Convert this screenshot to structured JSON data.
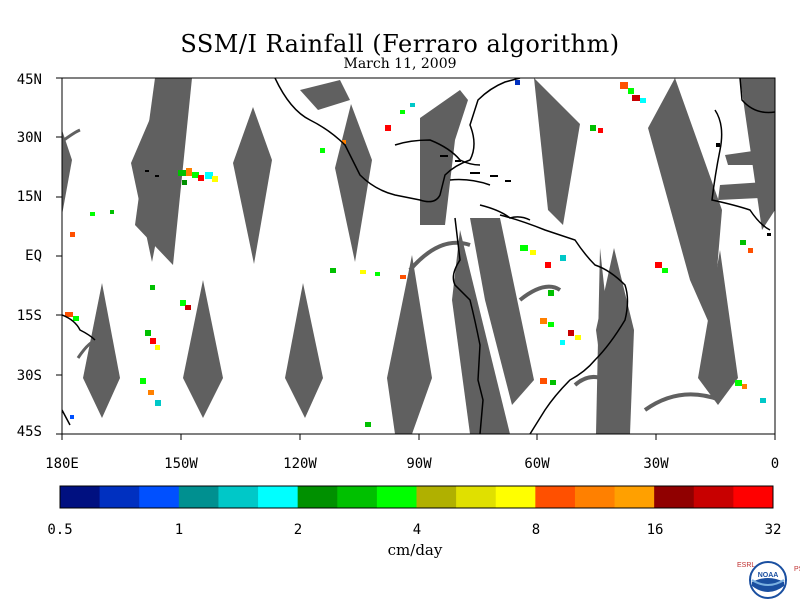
{
  "title": "SSM/I Rainfall (Ferraro algorithm)",
  "date": "March 11, 2009",
  "lat_labels": [
    "45N",
    "30N",
    "15N",
    "EQ",
    "15S",
    "30S",
    "45S"
  ],
  "lon_labels": [
    "180E",
    "150W",
    "120W",
    "90W",
    "60W",
    "30W",
    "0"
  ],
  "colorbar": {
    "units": "cm/day",
    "tick_labels": [
      "0.5",
      "1",
      "2",
      "4",
      "8",
      "16",
      "32"
    ],
    "colors": [
      "#001080",
      "#0030c0",
      "#0050ff",
      "#009090",
      "#00c8c8",
      "#00ffff",
      "#009000",
      "#00c000",
      "#00ff00",
      "#b0b000",
      "#e0e000",
      "#ffff00",
      "#ff5000",
      "#ff8000",
      "#ffa000",
      "#900000",
      "#c80000",
      "#ff0000"
    ]
  },
  "logo": {
    "left_letters": "ESRL",
    "right_letters": "PSD",
    "badge_text": "NOAA"
  },
  "colors": {
    "swath_gap": "#606060",
    "land_outline": "#000000",
    "background": "#ffffff"
  }
}
